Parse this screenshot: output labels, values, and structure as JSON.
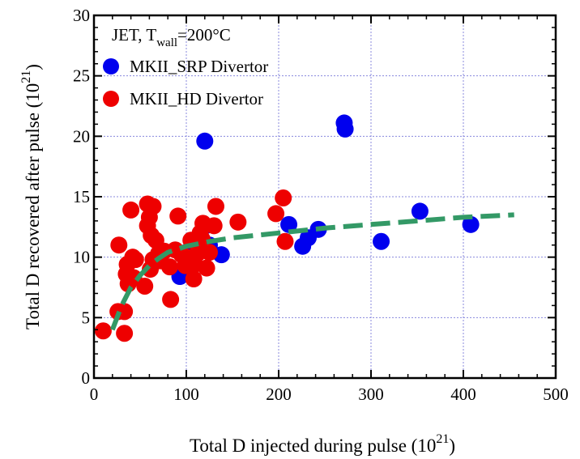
{
  "chart_data": {
    "type": "scatter",
    "x_range": [
      0,
      500
    ],
    "y_range": [
      0,
      30
    ],
    "x_ticks": [
      0,
      100,
      200,
      300,
      400,
      500
    ],
    "y_ticks": [
      0,
      5,
      10,
      15,
      20,
      25,
      30
    ],
    "x_tick_labels": [
      "0",
      "100",
      "200",
      "300",
      "400",
      "500"
    ],
    "y_tick_labels": [
      "0",
      "5",
      "10",
      "15",
      "20",
      "25",
      "30"
    ],
    "grid": true,
    "legend_placement": "top-left",
    "xlabel": {
      "main": "Total D injected during pulse (10",
      "sup": "21",
      "close": ")"
    },
    "ylabel": {
      "main": "Total D recovered after pulse (10",
      "sup": "21",
      "close": ")"
    },
    "annotation": {
      "prefix": "JET, T",
      "sub": "wall",
      "suffix": "=200°C"
    },
    "series": [
      {
        "name": "MKII_SRP Divertor",
        "color": "#0000ee",
        "points": [
          [
            93,
            8.4
          ],
          [
            100,
            10.4
          ],
          [
            120,
            19.6
          ],
          [
            121,
            12.6
          ],
          [
            125,
            11.0
          ],
          [
            138,
            10.2
          ],
          [
            211,
            12.7
          ],
          [
            226,
            10.9
          ],
          [
            232,
            11.6
          ],
          [
            243,
            12.3
          ],
          [
            271,
            21.1
          ],
          [
            272,
            20.6
          ],
          [
            311,
            11.3
          ],
          [
            353,
            13.8
          ],
          [
            408,
            12.7
          ]
        ]
      },
      {
        "name": "MKII_HD Divertor",
        "color": "#ee0000",
        "points": [
          [
            10,
            3.9
          ],
          [
            26,
            5.5
          ],
          [
            27,
            11.0
          ],
          [
            33,
            3.7
          ],
          [
            33,
            5.5
          ],
          [
            35,
            8.6
          ],
          [
            36,
            9.4
          ],
          [
            37,
            7.8
          ],
          [
            40,
            13.9
          ],
          [
            42,
            10.0
          ],
          [
            43,
            8.3
          ],
          [
            45,
            9.8
          ],
          [
            55,
            7.6
          ],
          [
            58,
            12.6
          ],
          [
            58,
            14.4
          ],
          [
            60,
            13.3
          ],
          [
            61,
            9.0
          ],
          [
            62,
            11.8
          ],
          [
            64,
            9.8
          ],
          [
            64,
            14.2
          ],
          [
            67,
            11.4
          ],
          [
            70,
            10.3
          ],
          [
            72,
            9.7
          ],
          [
            76,
            10.5
          ],
          [
            82,
            9.2
          ],
          [
            83,
            6.5
          ],
          [
            88,
            10.6
          ],
          [
            91,
            13.4
          ],
          [
            95,
            10.2
          ],
          [
            99,
            9.3
          ],
          [
            100,
            10.0
          ],
          [
            105,
            11.4
          ],
          [
            108,
            8.2
          ],
          [
            109,
            9.4
          ],
          [
            112,
            10.3
          ],
          [
            115,
            12.0
          ],
          [
            117,
            11.5
          ],
          [
            118,
            12.8
          ],
          [
            122,
            9.1
          ],
          [
            125,
            10.4
          ],
          [
            130,
            12.6
          ],
          [
            132,
            14.2
          ],
          [
            156,
            12.9
          ],
          [
            197,
            13.6
          ],
          [
            205,
            14.9
          ],
          [
            207,
            11.3
          ]
        ]
      }
    ],
    "fit_line": {
      "color": "#339966",
      "points": [
        [
          20,
          4.0
        ],
        [
          30,
          6.0
        ],
        [
          40,
          7.5
        ],
        [
          50,
          8.5
        ],
        [
          60,
          9.3
        ],
        [
          70,
          9.9
        ],
        [
          80,
          10.4
        ],
        [
          100,
          10.9
        ],
        [
          125,
          11.3
        ],
        [
          150,
          11.6
        ],
        [
          200,
          12.0
        ],
        [
          250,
          12.4
        ],
        [
          300,
          12.7
        ],
        [
          350,
          13.0
        ],
        [
          400,
          13.3
        ],
        [
          455,
          13.5
        ]
      ]
    }
  }
}
